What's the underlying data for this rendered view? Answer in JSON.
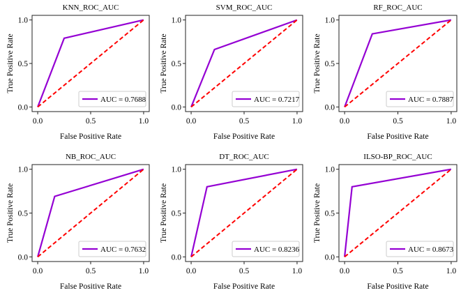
{
  "chart_data": [
    {
      "type": "line",
      "title": "KNN_ROC_AUC",
      "xlabel": "False Positive Rate",
      "ylabel": "True Positive Rate",
      "xlim": [
        0,
        1
      ],
      "ylim": [
        0,
        1
      ],
      "xticks": [
        "0.0",
        "0.5",
        "1.0"
      ],
      "yticks": [
        "0.0",
        "0.5",
        "1.0"
      ],
      "grid": false,
      "legend_position": "bottom-right",
      "series": [
        {
          "name": "AUC = 0.7688",
          "style": "solid",
          "color": "#9400D3",
          "x": [
            0,
            0.25,
            1
          ],
          "y": [
            0,
            0.79,
            1
          ]
        },
        {
          "name": "chance",
          "style": "dashed",
          "color": "#FF0000",
          "x": [
            0,
            1
          ],
          "y": [
            0,
            1
          ]
        }
      ],
      "legend_label": "AUC = 0.7688"
    },
    {
      "type": "line",
      "title": "SVM_ROC_AUC",
      "xlabel": "False Positive Rate",
      "ylabel": "True Positive Rate",
      "xlim": [
        0,
        1
      ],
      "ylim": [
        0,
        1
      ],
      "xticks": [
        "0.0",
        "0.5",
        "1.0"
      ],
      "yticks": [
        "0.0",
        "0.5",
        "1.0"
      ],
      "grid": false,
      "legend_position": "bottom-right",
      "series": [
        {
          "name": "AUC = 0.7217",
          "style": "solid",
          "color": "#9400D3",
          "x": [
            0,
            0.22,
            1
          ],
          "y": [
            0,
            0.66,
            1
          ]
        },
        {
          "name": "chance",
          "style": "dashed",
          "color": "#FF0000",
          "x": [
            0,
            1
          ],
          "y": [
            0,
            1
          ]
        }
      ],
      "legend_label": "AUC = 0.7217"
    },
    {
      "type": "line",
      "title": "RF_ROC_AUC",
      "xlabel": "False Positive Rate",
      "ylabel": "True Positive Rate",
      "xlim": [
        0,
        1
      ],
      "ylim": [
        0,
        1
      ],
      "xticks": [
        "0.0",
        "0.5",
        "1.0"
      ],
      "yticks": [
        "0.0",
        "0.5",
        "1.0"
      ],
      "grid": false,
      "legend_position": "bottom-right",
      "series": [
        {
          "name": "AUC = 0.7887",
          "style": "solid",
          "color": "#9400D3",
          "x": [
            0,
            0.26,
            1
          ],
          "y": [
            0,
            0.84,
            1
          ]
        },
        {
          "name": "chance",
          "style": "dashed",
          "color": "#FF0000",
          "x": [
            0,
            1
          ],
          "y": [
            0,
            1
          ]
        }
      ],
      "legend_label": "AUC = 0.7887"
    },
    {
      "type": "line",
      "title": "NB_ROC_AUC",
      "xlabel": "False Positive Rate",
      "ylabel": "True Positive Rate",
      "xlim": [
        0,
        1
      ],
      "ylim": [
        0,
        1
      ],
      "xticks": [
        "0.0",
        "0.5",
        "1.0"
      ],
      "yticks": [
        "0.0",
        "0.5",
        "1.0"
      ],
      "grid": false,
      "legend_position": "bottom-right",
      "series": [
        {
          "name": "AUC = 0.7632",
          "style": "solid",
          "color": "#9400D3",
          "x": [
            0,
            0.16,
            1
          ],
          "y": [
            0,
            0.69,
            1
          ]
        },
        {
          "name": "chance",
          "style": "dashed",
          "color": "#FF0000",
          "x": [
            0,
            1
          ],
          "y": [
            0,
            1
          ]
        }
      ],
      "legend_label": "AUC = 0.7632"
    },
    {
      "type": "line",
      "title": "DT_ROC_AUC",
      "xlabel": "False Positive Rate",
      "ylabel": "True Positive Rate",
      "xlim": [
        0,
        1
      ],
      "ylim": [
        0,
        1
      ],
      "xticks": [
        "0.0",
        "0.5",
        "1.0"
      ],
      "yticks": [
        "0.0",
        "0.5",
        "1.0"
      ],
      "grid": false,
      "legend_position": "bottom-right",
      "series": [
        {
          "name": "AUC = 0.8236",
          "style": "solid",
          "color": "#9400D3",
          "x": [
            0,
            0.15,
            1
          ],
          "y": [
            0,
            0.8,
            1
          ]
        },
        {
          "name": "chance",
          "style": "dashed",
          "color": "#FF0000",
          "x": [
            0,
            1
          ],
          "y": [
            0,
            1
          ]
        }
      ],
      "legend_label": "AUC = 0.8236"
    },
    {
      "type": "line",
      "title": "ILSO-BP_ROC_AUC",
      "xlabel": "False Positive Rate",
      "ylabel": "True Positive Rate",
      "xlim": [
        0,
        1
      ],
      "ylim": [
        0,
        1
      ],
      "xticks": [
        "0.0",
        "0.5",
        "1.0"
      ],
      "yticks": [
        "0.0",
        "0.5",
        "1.0"
      ],
      "grid": false,
      "legend_position": "bottom-right",
      "series": [
        {
          "name": "AUC = 0.8673",
          "style": "solid",
          "color": "#9400D3",
          "x": [
            0,
            0.07,
            1
          ],
          "y": [
            0,
            0.8,
            1
          ]
        },
        {
          "name": "chance",
          "style": "dashed",
          "color": "#FF0000",
          "x": [
            0,
            1
          ],
          "y": [
            0,
            1
          ]
        }
      ],
      "legend_label": "AUC = 0.8673"
    }
  ]
}
